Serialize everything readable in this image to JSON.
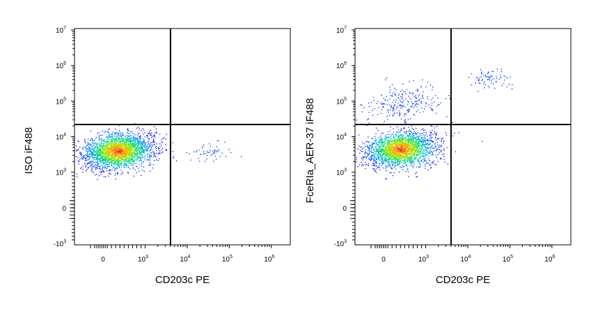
{
  "chart_data": [
    {
      "type": "scatter",
      "plot_style": "pseudocolor density dot plot",
      "xlabel": "CD203c PE",
      "ylabel": "ISO  iF488",
      "x_scale": "biexponential",
      "y_scale": "biexponential",
      "x_ticks": [
        {
          "value": 0,
          "label": "0"
        },
        {
          "value": 1000,
          "label": "10",
          "exp": "3"
        },
        {
          "value": 10000,
          "label": "10",
          "exp": "4"
        },
        {
          "value": 100000,
          "label": "10",
          "exp": "5"
        },
        {
          "value": 1000000,
          "label": "10",
          "exp": "6"
        }
      ],
      "y_ticks": [
        {
          "value": -1000,
          "label": "-10",
          "exp": "3"
        },
        {
          "value": 0,
          "label": "0"
        },
        {
          "value": 1000,
          "label": "10",
          "exp": "3"
        },
        {
          "value": 10000,
          "label": "10",
          "exp": "4"
        },
        {
          "value": 100000,
          "label": "10",
          "exp": "5"
        },
        {
          "value": 1000000,
          "label": "10",
          "exp": "6"
        },
        {
          "value": 10000000,
          "label": "10",
          "exp": "7"
        }
      ],
      "quadrant_gate": {
        "x": 4000,
        "y": 22000
      },
      "populations": [
        {
          "cx": 350,
          "cy": 4000,
          "sx": 0.42,
          "sy": 0.28,
          "count": 2600,
          "dense": true
        },
        {
          "cx": 30000,
          "cy": 3500,
          "sx": 0.28,
          "sy": 0.18,
          "count": 55,
          "dense": false
        }
      ]
    },
    {
      "type": "scatter",
      "plot_style": "pseudocolor density dot plot",
      "xlabel": "CD203c PE",
      "ylabel": "FceRIa_AER-37 iF488",
      "x_scale": "biexponential",
      "y_scale": "biexponential",
      "x_ticks": [
        {
          "value": 0,
          "label": "0"
        },
        {
          "value": 1000,
          "label": "10",
          "exp": "3"
        },
        {
          "value": 10000,
          "label": "10",
          "exp": "4"
        },
        {
          "value": 100000,
          "label": "10",
          "exp": "5"
        },
        {
          "value": 1000000,
          "label": "10",
          "exp": "6"
        }
      ],
      "y_ticks": [
        {
          "value": -1000,
          "label": "-10",
          "exp": "3"
        },
        {
          "value": 0,
          "label": "0"
        },
        {
          "value": 1000,
          "label": "10",
          "exp": "3"
        },
        {
          "value": 10000,
          "label": "10",
          "exp": "4"
        },
        {
          "value": 100000,
          "label": "10",
          "exp": "5"
        },
        {
          "value": 1000000,
          "label": "10",
          "exp": "6"
        },
        {
          "value": 10000000,
          "label": "10",
          "exp": "7"
        }
      ],
      "quadrant_gate": {
        "x": 4000,
        "y": 22000
      },
      "populations": [
        {
          "cx": 400,
          "cy": 4500,
          "sx": 0.42,
          "sy": 0.28,
          "count": 2400,
          "dense": true
        },
        {
          "cx": 500,
          "cy": 90000,
          "sx": 0.45,
          "sy": 0.3,
          "count": 260,
          "dense": false
        },
        {
          "cx": 35000,
          "cy": 450000,
          "sx": 0.25,
          "sy": 0.15,
          "count": 80,
          "dense": false
        }
      ]
    }
  ]
}
